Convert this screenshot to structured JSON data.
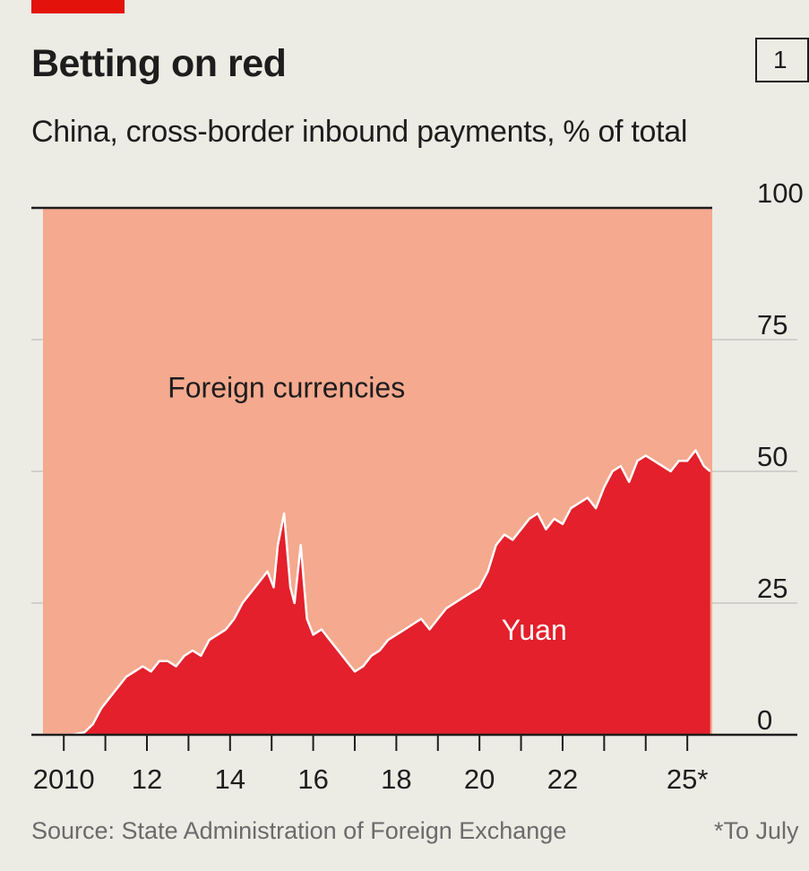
{
  "header": {
    "title": "Betting on red",
    "chart_number": "1",
    "subtitle": "China, cross-border inbound payments, % of total"
  },
  "footer": {
    "source": "Source: State Administration of Foreign Exchange",
    "footnote": "*To July"
  },
  "colors": {
    "background": "#ecebe4",
    "foreign": "#f5a98e",
    "yuan": "#e3202b",
    "accent": "#e3120b",
    "gridline": "#c6c6c0",
    "text": "#1d1d1d",
    "muted": "#6b6b6b"
  },
  "chart_data": {
    "type": "area",
    "title": "Betting on red",
    "subtitle": "China, cross-border inbound payments, % of total",
    "stacked": true,
    "xlim": [
      2009.5,
      2025.6
    ],
    "ylim": [
      0,
      100
    ],
    "y_ticks": [
      0,
      25,
      50,
      75,
      100
    ],
    "y_tick_labels": [
      "0",
      "25",
      "50",
      "75",
      "100"
    ],
    "y_axis_side": "right",
    "x_ticks": [
      2010,
      2011,
      2012,
      2013,
      2014,
      2015,
      2016,
      2017,
      2018,
      2019,
      2020,
      2021,
      2022,
      2023,
      2024,
      2025
    ],
    "x_tick_labels": [
      {
        "x": 2010,
        "label": "2010"
      },
      {
        "x": 2012,
        "label": "12"
      },
      {
        "x": 2014,
        "label": "14"
      },
      {
        "x": 2016,
        "label": "16"
      },
      {
        "x": 2018,
        "label": "18"
      },
      {
        "x": 2020,
        "label": "20"
      },
      {
        "x": 2022,
        "label": "22"
      },
      {
        "x": 2025,
        "label": "25*"
      }
    ],
    "grid": true,
    "series_labels": {
      "foreign": {
        "text": "Foreign currencies",
        "x": 2012.5,
        "y": 64
      },
      "yuan": {
        "text": "Yuan",
        "x": 2021.5,
        "y": 18
      }
    },
    "series": [
      {
        "name": "Foreign currencies",
        "role": "remainder",
        "values_note": "100 minus yuan share"
      },
      {
        "name": "Yuan",
        "x": [
          2009.5,
          2010.2,
          2010.5,
          2010.7,
          2010.9,
          2011.1,
          2011.3,
          2011.5,
          2011.7,
          2011.9,
          2012.1,
          2012.3,
          2012.5,
          2012.7,
          2012.9,
          2013.1,
          2013.3,
          2013.5,
          2013.7,
          2013.9,
          2014.1,
          2014.3,
          2014.5,
          2014.7,
          2014.9,
          2015.05,
          2015.15,
          2015.3,
          2015.45,
          2015.55,
          2015.7,
          2015.85,
          2016.0,
          2016.2,
          2016.4,
          2016.6,
          2016.8,
          2017.0,
          2017.2,
          2017.4,
          2017.6,
          2017.8,
          2018.0,
          2018.2,
          2018.4,
          2018.6,
          2018.8,
          2019.0,
          2019.2,
          2019.4,
          2019.6,
          2019.8,
          2020.0,
          2020.2,
          2020.4,
          2020.6,
          2020.8,
          2021.0,
          2021.2,
          2021.4,
          2021.6,
          2021.8,
          2022.0,
          2022.2,
          2022.4,
          2022.6,
          2022.8,
          2023.0,
          2023.2,
          2023.4,
          2023.6,
          2023.8,
          2024.0,
          2024.2,
          2024.4,
          2024.6,
          2024.8,
          2025.0,
          2025.2,
          2025.4,
          2025.55
        ],
        "values": [
          0,
          0,
          0.5,
          2,
          5,
          7,
          9,
          11,
          12,
          13,
          12,
          14,
          14,
          13,
          15,
          16,
          15,
          18,
          19,
          20,
          22,
          25,
          27,
          29,
          31,
          28,
          36,
          42,
          28,
          25,
          36,
          22,
          19,
          20,
          18,
          16,
          14,
          12,
          13,
          15,
          16,
          18,
          19,
          20,
          21,
          22,
          20,
          22,
          24,
          25,
          26,
          27,
          28,
          31,
          36,
          38,
          37,
          39,
          41,
          42,
          39,
          41,
          40,
          43,
          44,
          45,
          43,
          47,
          50,
          51,
          48,
          52,
          53,
          52,
          51,
          50,
          52,
          52,
          54,
          51,
          50
        ]
      }
    ]
  }
}
